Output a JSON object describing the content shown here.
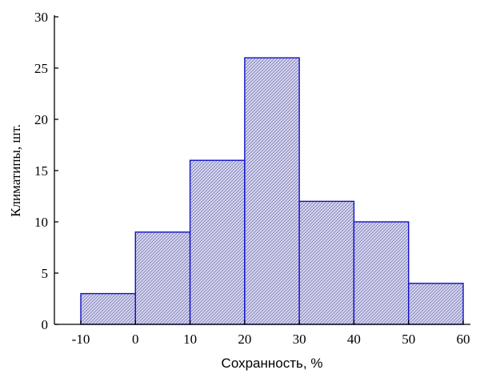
{
  "chart_data": {
    "type": "bar",
    "subtype": "histogram",
    "title": "",
    "xlabel": "Сохранность, %",
    "ylabel": "Климатипы, шт.",
    "bins": [
      {
        "from": -10,
        "to": 0,
        "value": 3
      },
      {
        "from": 0,
        "to": 10,
        "value": 9
      },
      {
        "from": 10,
        "to": 20,
        "value": 16
      },
      {
        "from": 20,
        "to": 30,
        "value": 26
      },
      {
        "from": 30,
        "to": 40,
        "value": 12
      },
      {
        "from": 40,
        "to": 50,
        "value": 10
      },
      {
        "from": 50,
        "to": 60,
        "value": 4
      }
    ],
    "xlim": [
      -10,
      60
    ],
    "ylim": [
      0,
      30
    ],
    "xticks": [
      "-10",
      "0",
      "10",
      "20",
      "30",
      "40",
      "50",
      "60"
    ],
    "yticks": [
      "0",
      "5",
      "10",
      "15",
      "20",
      "25",
      "30"
    ],
    "grid": false,
    "bar_fill": "#c9c9e6",
    "bar_stroke": "#1010c8"
  }
}
